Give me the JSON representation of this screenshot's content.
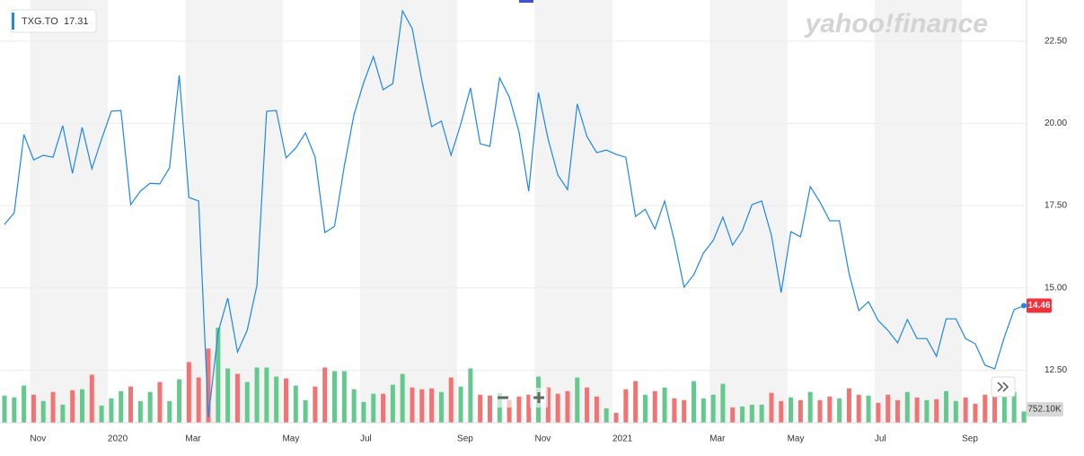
{
  "chart_data": {
    "type": "line",
    "watermark": "yahoo!finance",
    "legend": "top-left",
    "legend_value": 17.31,
    "categories": [
      null,
      null,
      null,
      "Nov",
      null,
      null,
      null,
      null,
      null,
      null,
      null,
      "2020",
      null,
      null,
      null,
      null,
      null,
      null,
      null,
      "Mar",
      null,
      null,
      null,
      null,
      null,
      null,
      null,
      null,
      null,
      "May",
      null,
      null,
      null,
      null,
      null,
      null,
      null,
      "Jul",
      null,
      null,
      null,
      null,
      null,
      null,
      null,
      null,
      null,
      "Sep",
      null,
      null,
      null,
      null,
      null,
      null,
      null,
      "Nov",
      null,
      null,
      null,
      null,
      null,
      null,
      null,
      "2021",
      null,
      null,
      null,
      null,
      null,
      null,
      null,
      null,
      null,
      "Mar",
      null,
      null,
      null,
      null,
      null,
      null,
      null,
      "May",
      null,
      null,
      null,
      null,
      null,
      null,
      null,
      null,
      "Jul",
      null,
      null,
      null,
      null,
      null,
      null,
      null,
      null,
      "Sep",
      null,
      null,
      null,
      null,
      null,
      null
    ],
    "series": [
      {
        "name": "TXG.TO",
        "color": "#1e88e5",
        "values": [
          16.93,
          17.28,
          19.66,
          18.89,
          19.03,
          18.97,
          19.93,
          18.48,
          19.88,
          18.62,
          19.52,
          20.37,
          20.39,
          17.53,
          17.94,
          18.18,
          18.16,
          18.65,
          21.46,
          17.75,
          17.64,
          11.06,
          13.65,
          14.69,
          13.05,
          13.71,
          15.07,
          20.37,
          20.39,
          18.95,
          19.25,
          19.71,
          18.97,
          16.68,
          16.87,
          18.7,
          20.26,
          21.24,
          22.03,
          21.02,
          21.21,
          23.42,
          22.88,
          21.29,
          19.9,
          20.07,
          19.03,
          19.98,
          21.08,
          19.38,
          19.3,
          21.38,
          20.8,
          19.74,
          17.94,
          20.94,
          19.52,
          18.43,
          17.99,
          20.59,
          19.6,
          19.11,
          19.19,
          19.06,
          18.97,
          17.17,
          17.39,
          16.79,
          17.64,
          16.44,
          15.02,
          15.4,
          16.06,
          16.44,
          17.15,
          16.3,
          16.74,
          17.53,
          17.64,
          16.6,
          14.86,
          16.71,
          16.55,
          18.08,
          17.61,
          17.04,
          17.04,
          15.43,
          14.31,
          14.58,
          14.01,
          13.71,
          13.33,
          14.04,
          13.46,
          13.46,
          12.92,
          14.06,
          14.06,
          13.46,
          13.3,
          12.65,
          12.54,
          13.51,
          14.34,
          14.46
        ]
      }
    ],
    "ylim": [
      10.9,
      23.75
    ],
    "yticks": [
      {
        "value": 12.5,
        "label": "12.50"
      },
      {
        "value": 15,
        "label": "15.00"
      },
      {
        "value": 17.5,
        "label": "17.50"
      },
      {
        "value": 20,
        "label": "20.00"
      },
      {
        "value": 22.5,
        "label": "22.50"
      }
    ],
    "grid": true,
    "volume": {
      "up_color": "#5bc686",
      "down_color": "#f16b6b",
      "ylim": [
        0,
        28000
      ],
      "values": [
        1800,
        1680,
        2460,
        1860,
        1440,
        2040,
        1200,
        2160,
        2220,
        3180,
        1140,
        1620,
        2100,
        2400,
        1440,
        2040,
        2700,
        1440,
        2880,
        4020,
        3000,
        4920,
        6300,
        3600,
        3240,
        2700,
        3660,
        3660,
        3060,
        2940,
        2460,
        1500,
        2400,
        3660,
        3420,
        3420,
        2220,
        1380,
        1920,
        1920,
        2520,
        3240,
        2340,
        2220,
        2280,
        2040,
        3000,
        2400,
        3600,
        1860,
        1800,
        1980,
        1500,
        1740,
        1860,
        3060,
        2340,
        1920,
        2100,
        3000,
        2340,
        1740,
        960,
        660,
        2220,
        2760,
        1860,
        2100,
        2340,
        1620,
        1500,
        2760,
        1620,
        1860,
        2580,
        1020,
        1080,
        1200,
        1200,
        1980,
        1440,
        1680,
        1500,
        2040,
        1500,
        1740,
        1620,
        2280,
        1860,
        1800,
        1320,
        1860,
        1500,
        2040,
        1680,
        1500,
        1560,
        2100,
        1440,
        1680,
        1260,
        1860,
        2760,
        1980,
        2040,
        752.1
      ],
      "value_labels": [
        null,
        null,
        null,
        null,
        null,
        null,
        null,
        null,
        null,
        null,
        null,
        null,
        null,
        null,
        null,
        null,
        null,
        null,
        null,
        null,
        null,
        null,
        null,
        null,
        null,
        null,
        null,
        null,
        null,
        null,
        null,
        null,
        null,
        null,
        null,
        null,
        null,
        null,
        null,
        null,
        null,
        null,
        null,
        null,
        null,
        null,
        null,
        null,
        null,
        null,
        null,
        null,
        null,
        null,
        null,
        null,
        null,
        null,
        null,
        null,
        null,
        null,
        null,
        null,
        null,
        null,
        null,
        null,
        null,
        null,
        null,
        null,
        null,
        null,
        null,
        null,
        null,
        null,
        null,
        null,
        null,
        null,
        null,
        null,
        null,
        null,
        null,
        null,
        null,
        null,
        null,
        null,
        null,
        null,
        null,
        null,
        null,
        null,
        null,
        null,
        null,
        null,
        null,
        null,
        null,
        "752.10K"
      ]
    }
  }
}
